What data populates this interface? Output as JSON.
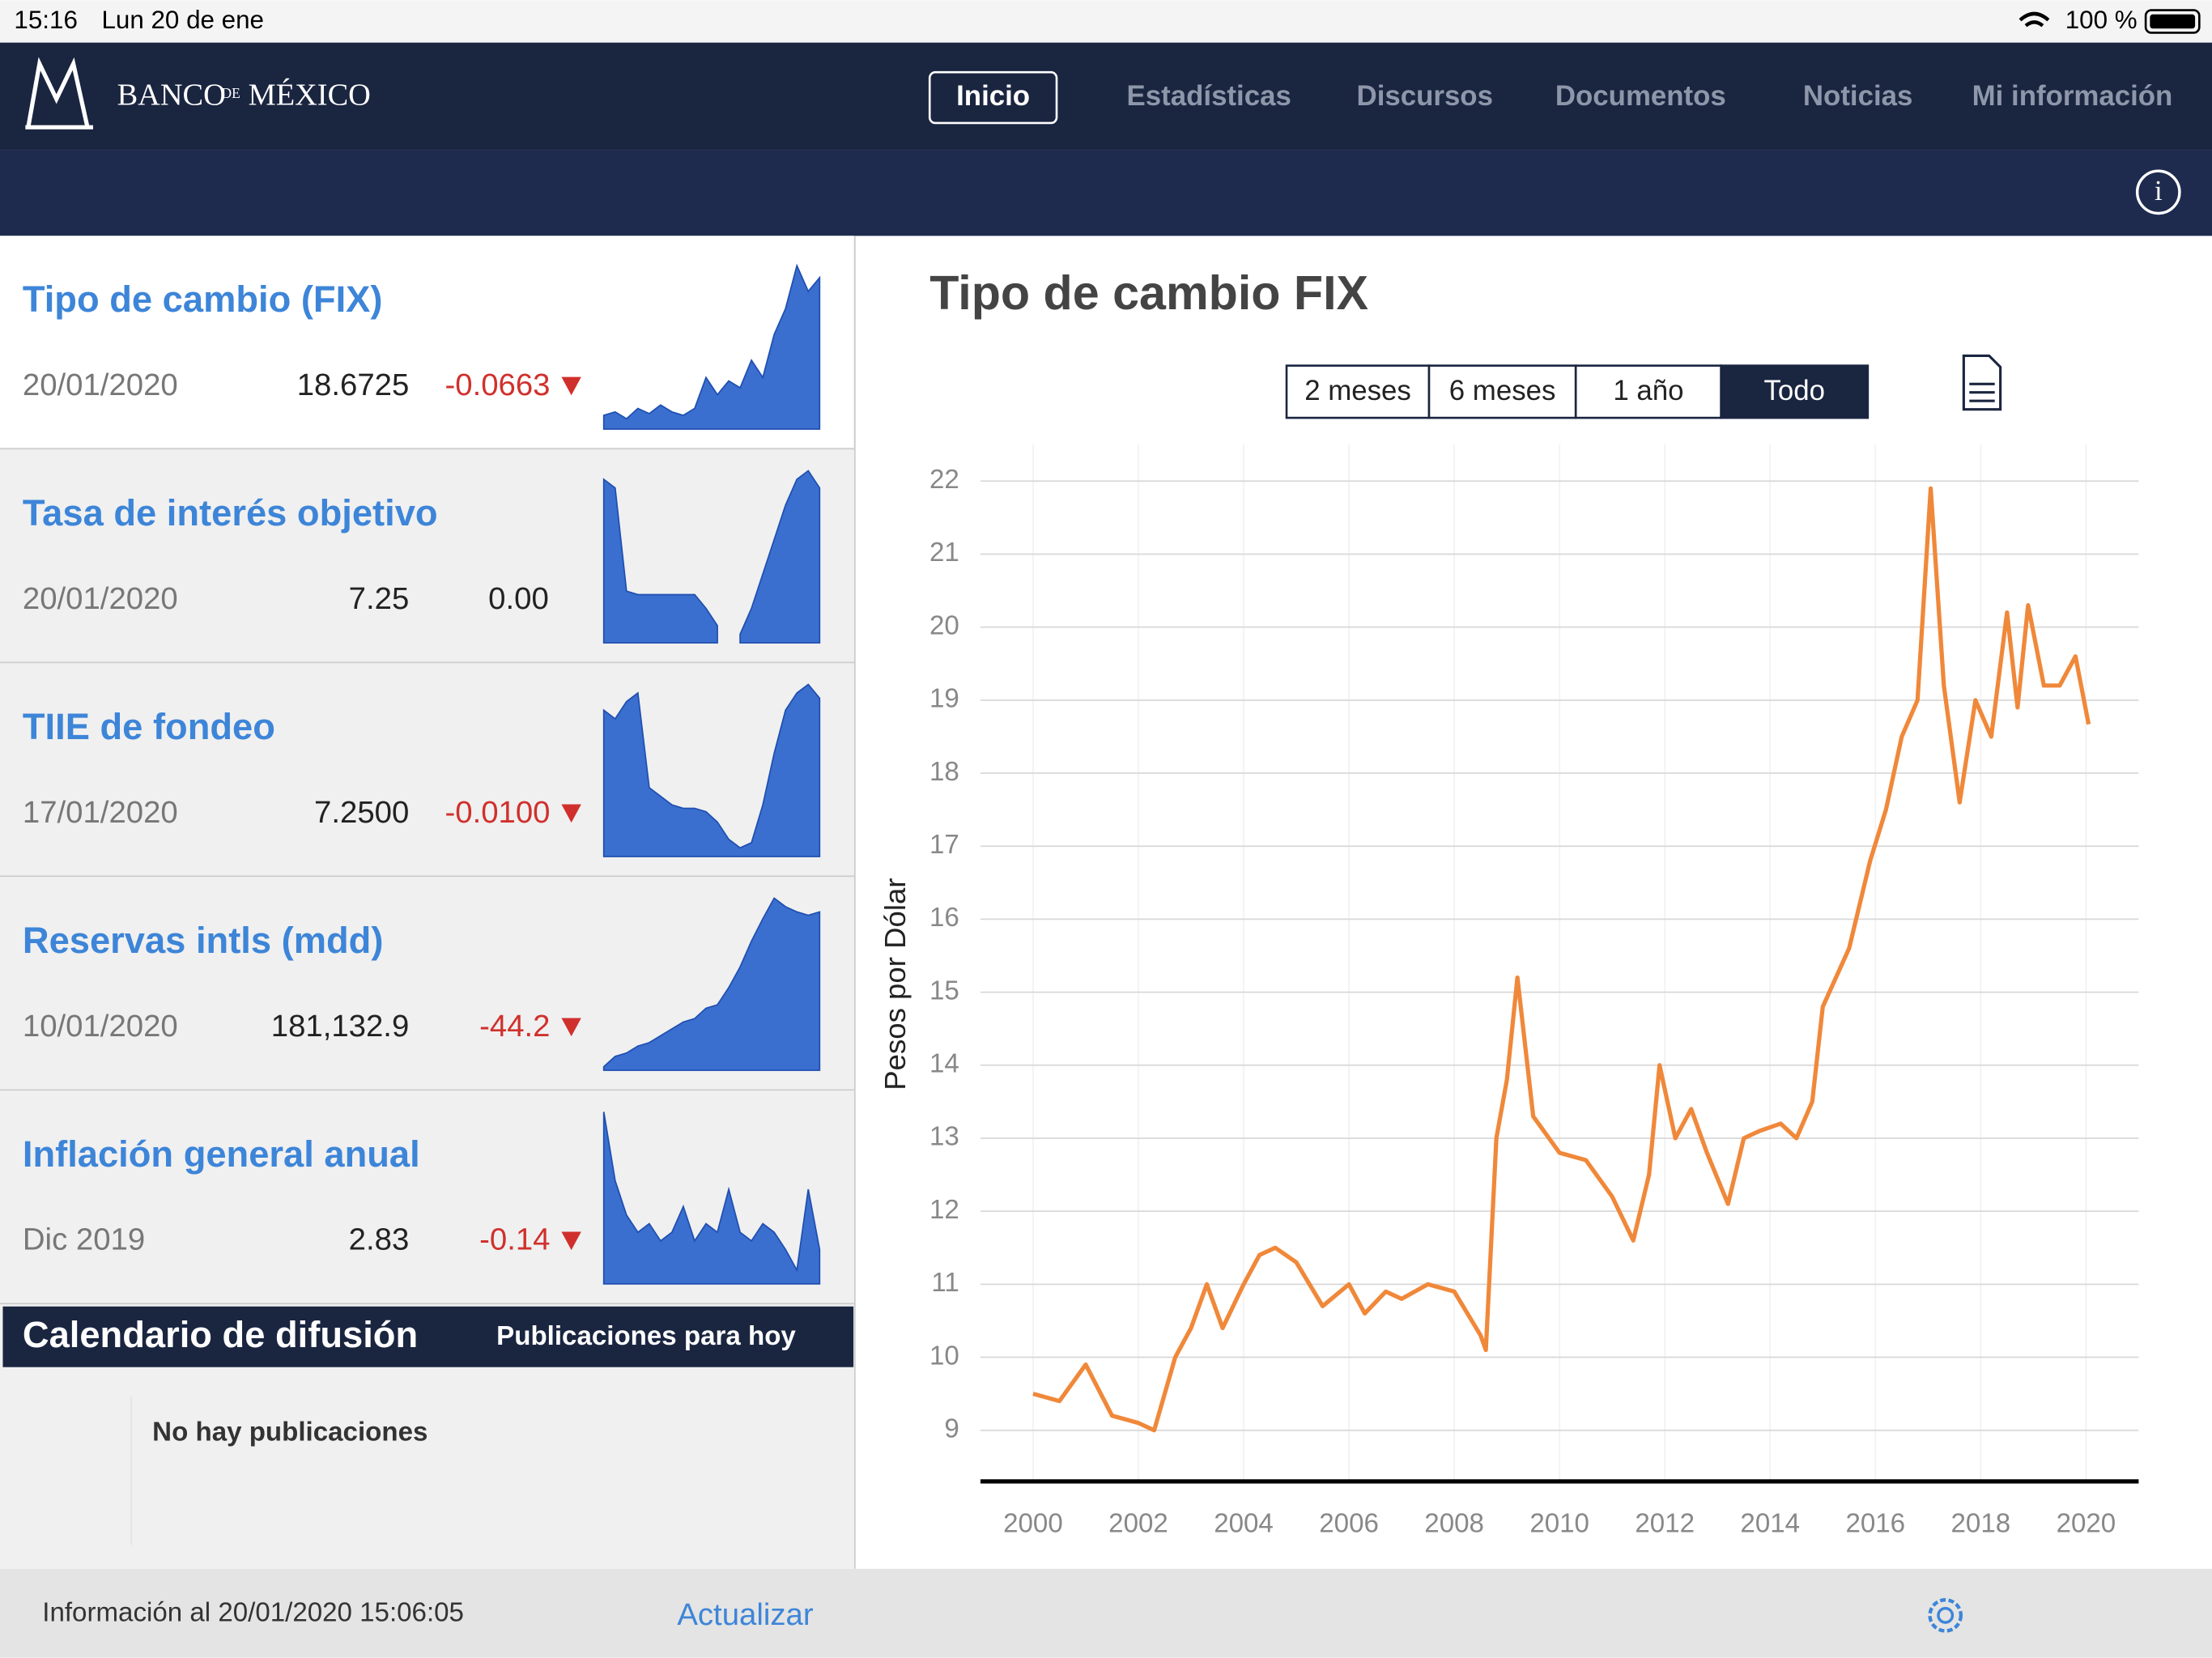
{
  "status": {
    "time": "15:16",
    "date": "Lun 20 de ene",
    "battery": "100 %"
  },
  "nav": {
    "logo": [
      "BANCO",
      "DE",
      "MÉXICO"
    ],
    "tabs": [
      "Inicio",
      "Estadísticas",
      "Discursos",
      "Documentos",
      "Noticias",
      "Mi información"
    ]
  },
  "indicators": [
    {
      "title": "Tipo de cambio (FIX)",
      "date": "20/01/2020",
      "value": "18.6725",
      "change": "-0.0663",
      "spark": [
        8,
        10,
        6,
        12,
        9,
        14,
        10,
        8,
        12,
        30,
        20,
        28,
        24,
        40,
        30,
        55,
        70,
        95,
        80,
        88
      ]
    },
    {
      "title": "Tasa de interés objetivo",
      "date": "20/01/2020",
      "value": "7.25",
      "change": "0.00",
      "spark": [
        95,
        90,
        30,
        28,
        28,
        28,
        28,
        28,
        28,
        20,
        10,
        null,
        5,
        20,
        40,
        60,
        80,
        95,
        100,
        90
      ]
    },
    {
      "title": "TIIE de fondeo",
      "date": "17/01/2020",
      "value": "7.2500",
      "change": "-0.0100",
      "spark": [
        85,
        80,
        90,
        95,
        40,
        35,
        30,
        28,
        28,
        26,
        20,
        10,
        5,
        8,
        30,
        60,
        85,
        95,
        100,
        92
      ]
    },
    {
      "title": "Reservas intls (mdd)",
      "date": "10/01/2020",
      "value": "181,132.9",
      "change": "-44.2",
      "spark": [
        2,
        8,
        10,
        14,
        16,
        20,
        24,
        28,
        30,
        36,
        38,
        48,
        60,
        75,
        88,
        100,
        95,
        92,
        90,
        92
      ]
    },
    {
      "title": "Inflación general anual",
      "date": "Dic 2019",
      "value": "2.83",
      "change": "-0.14",
      "spark": [
        100,
        60,
        40,
        30,
        35,
        25,
        30,
        45,
        25,
        35,
        30,
        55,
        30,
        25,
        35,
        30,
        20,
        8,
        55,
        20
      ]
    }
  ],
  "calendar": {
    "title": "Calendario de difusión",
    "tab": "Publicaciones para hoy",
    "empty": "No hay publicaciones"
  },
  "footer": {
    "info": "Información al 20/01/2020 15:06:05",
    "refresh": "Actualizar"
  },
  "chart_data": {
    "type": "line",
    "title": "Tipo de cambio FIX",
    "range_buttons": [
      "2 meses",
      "6 meses",
      "1 año",
      "Todo"
    ],
    "y_label": "Pesos por Dólar",
    "color": "#f0883a",
    "x": [
      2000.0,
      2000.5,
      2001.0,
      2001.5,
      2002.0,
      2002.3,
      2002.7,
      2003.0,
      2003.3,
      2003.6,
      2004.0,
      2004.3,
      2004.6,
      2005.0,
      2005.5,
      2006.0,
      2006.3,
      2006.7,
      2007.0,
      2007.5,
      2008.0,
      2008.5,
      2008.6,
      2008.8,
      2009.0,
      2009.2,
      2009.5,
      2010.0,
      2010.5,
      2011.0,
      2011.4,
      2011.7,
      2011.9,
      2012.2,
      2012.5,
      2012.8,
      2013.2,
      2013.5,
      2013.8,
      2014.2,
      2014.5,
      2014.8,
      2015.0,
      2015.5,
      2015.9,
      2016.2,
      2016.5,
      2016.8,
      2017.05,
      2017.3,
      2017.6,
      2017.9,
      2018.2,
      2018.5,
      2018.7,
      2018.9,
      2019.2,
      2019.5,
      2019.8,
      2020.05
    ],
    "values": [
      9.5,
      9.4,
      9.9,
      9.2,
      9.1,
      9.0,
      10.0,
      10.4,
      11.0,
      10.4,
      11.0,
      11.4,
      11.5,
      11.3,
      10.7,
      11.0,
      10.6,
      10.9,
      10.8,
      11.0,
      10.9,
      10.3,
      10.1,
      13.0,
      13.8,
      15.2,
      13.3,
      12.8,
      12.7,
      12.2,
      11.6,
      12.5,
      14.0,
      13.0,
      13.4,
      12.8,
      12.1,
      13.0,
      13.1,
      13.2,
      13.0,
      13.5,
      14.8,
      15.6,
      16.8,
      17.5,
      18.5,
      19.0,
      21.9,
      19.2,
      17.6,
      19.0,
      18.5,
      20.2,
      18.9,
      20.3,
      19.2,
      19.2,
      19.6,
      18.67
    ],
    "xlim": [
      1999,
      2021
    ],
    "ylim": [
      8.3,
      22.5
    ],
    "xticks": [
      2000,
      2002,
      2004,
      2006,
      2008,
      2010,
      2012,
      2014,
      2016,
      2018,
      2020
    ],
    "yticks": [
      9,
      10,
      11,
      12,
      13,
      14,
      15,
      16,
      17,
      18,
      19,
      20,
      21,
      22
    ],
    "grid": true
  }
}
